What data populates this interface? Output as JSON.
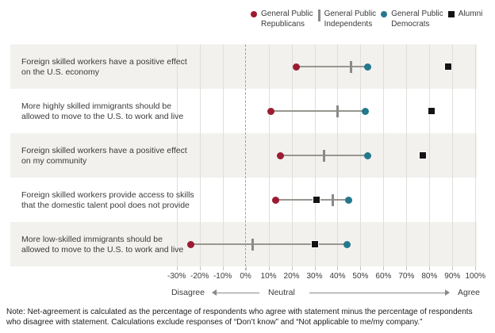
{
  "legend": {
    "items": [
      {
        "name": "gp-republicans",
        "shape": "circle",
        "color": "#9c1b30",
        "lines": [
          "General Public",
          "Republicans"
        ]
      },
      {
        "name": "gp-independents",
        "shape": "vbar",
        "color": "#8a8a8a",
        "lines": [
          "General Public",
          "Independents"
        ]
      },
      {
        "name": "gp-democrats",
        "shape": "circle",
        "color": "#23788d",
        "lines": [
          "General Public",
          "Democrats"
        ]
      },
      {
        "name": "alumni",
        "shape": "square",
        "color": "#141414",
        "lines": [
          "Alumni"
        ]
      }
    ]
  },
  "chart_data": {
    "type": "scatter",
    "variant": "dumbbell-dot-plot",
    "categories": [
      [
        "Foreign skilled workers have a positive effect",
        "on the U.S. economy"
      ],
      [
        "More highly skilled immigrants should be",
        "allowed to move to the U.S. to work and live"
      ],
      [
        "Foreign skilled workers have a positive effect",
        "on my community"
      ],
      [
        "Foreign skilled workers provide access to skills",
        "that the domestic talent pool does not provide"
      ],
      [
        "More low-skilled immigrants should be",
        "allowed to move to the U.S. to work and live"
      ]
    ],
    "series": [
      {
        "name": "General Public Republicans",
        "marker": "circle",
        "color": "#9c1b30",
        "values": [
          22,
          11,
          15,
          13,
          -24
        ]
      },
      {
        "name": "General Public Independents",
        "marker": "vbar",
        "color": "#8a8a8a",
        "values": [
          46,
          40,
          34,
          38,
          3
        ]
      },
      {
        "name": "General Public Democrats",
        "marker": "circle",
        "color": "#23788d",
        "values": [
          53,
          52,
          53,
          45,
          44
        ]
      },
      {
        "name": "Alumni",
        "marker": "square",
        "color": "#141414",
        "values": [
          88,
          81,
          77,
          31,
          30
        ]
      }
    ],
    "connector_series": [
      0,
      2
    ],
    "x_ticks": [
      -30,
      -20,
      -10,
      0,
      10,
      20,
      30,
      40,
      50,
      60,
      70,
      80,
      90,
      100
    ],
    "x_tick_suffix": "%",
    "xlim": [
      -102.4,
      100.6
    ],
    "zero_line": "dashed",
    "grid": true,
    "band_color": "#f2f1ee",
    "legend_position": "top-right"
  },
  "axis": {
    "disagree": "Disagree",
    "neutral": "Neutral",
    "agree": "Agree"
  },
  "note": {
    "line1": "Note: Net-agreement is calculated as the percentage of respondents who agree with statement minus the percentage of respondents",
    "line2": "who disagree with statement. Calculations exclude responses of “Don’t know” and “Not applicable to me/my company.”"
  }
}
